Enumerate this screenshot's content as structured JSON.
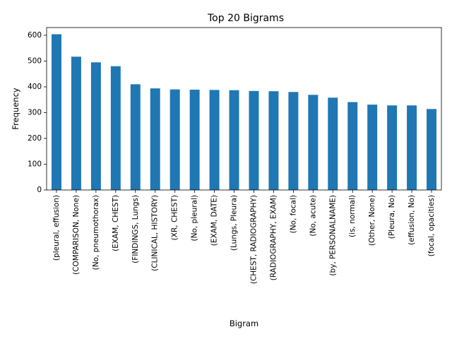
{
  "chart_data": {
    "type": "bar",
    "title": "Top 20 Bigrams",
    "xlabel": "Bigram",
    "ylabel": "Frequency",
    "ylim": [
      0,
      630
    ],
    "yticks": [
      0,
      100,
      200,
      300,
      400,
      500,
      600
    ],
    "grid": false,
    "legend": "none",
    "bar_color": "#1f77b4",
    "categories": [
      "(pleural, effusion)",
      "(COMPARISON, None)",
      "(No, pneumothorax)",
      "(EXAM, CHEST)",
      "(FINDINGS, Lungs)",
      "(CLINICAL, HISTORY)",
      "(XR, CHEST)",
      "(No, pleural)",
      "(EXAM, DATE)",
      "(Lungs, Pleura)",
      "(CHEST, RADIOGRAPHY)",
      "(RADIOGRAPHY, EXAM)",
      "(No, focal)",
      "(No, acute)",
      "(by, PERSONALNAME)",
      "(is, normal)",
      "(Other, None)",
      "(Pleura, No)",
      "(effusion, No)",
      "(focal, opacities)"
    ],
    "values": [
      604,
      517,
      495,
      480,
      410,
      394,
      390,
      389,
      388,
      387,
      384,
      383,
      380,
      369,
      358,
      341,
      331,
      328,
      328,
      314
    ]
  }
}
